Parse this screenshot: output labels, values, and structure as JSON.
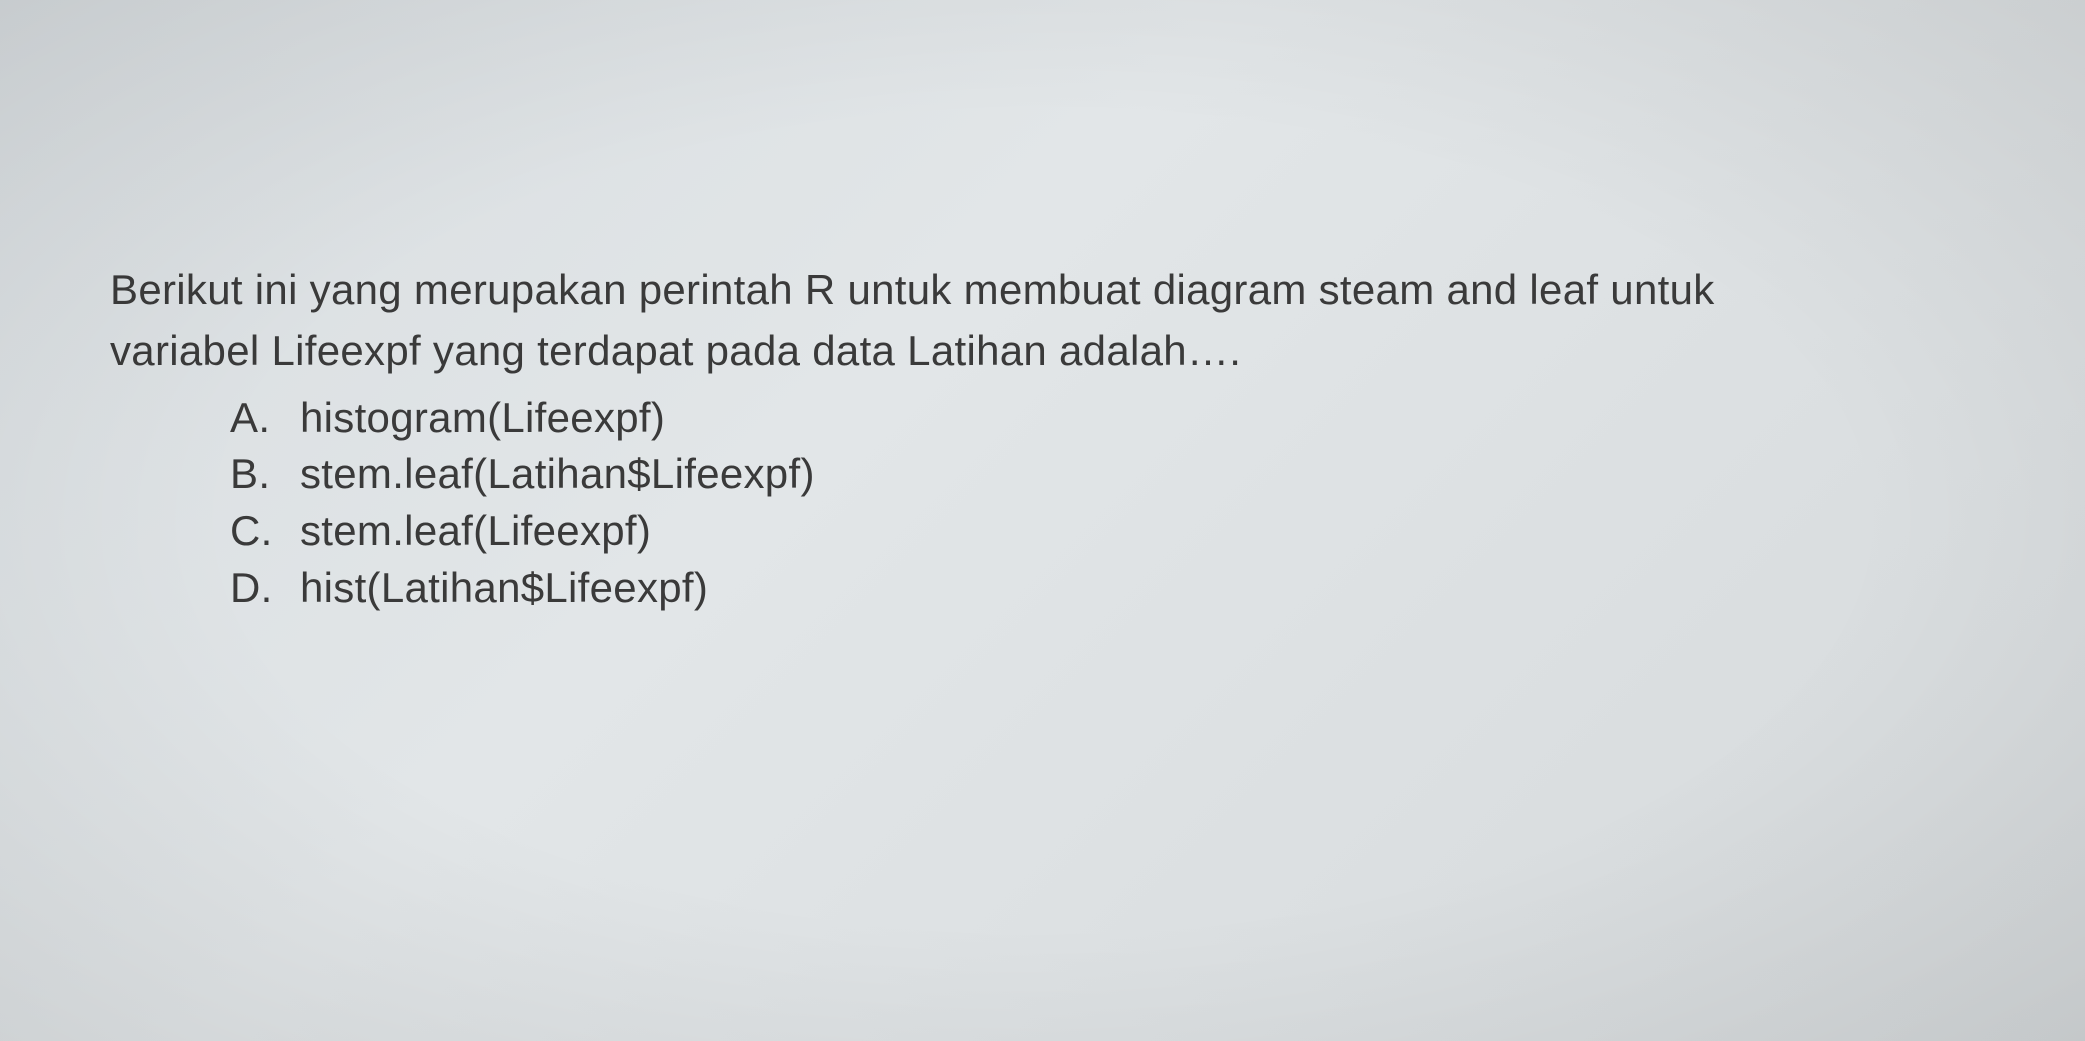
{
  "question": {
    "line1": "Berikut ini yang merupakan perintah R untuk membuat diagram steam and leaf untuk",
    "line2": "variabel Lifeexpf yang terdapat pada data Latihan adalah…."
  },
  "options": [
    {
      "letter": "A.",
      "text": "histogram(Lifeexpf)"
    },
    {
      "letter": "B.",
      "text": "stem.leaf(Latihan$Lifeexpf)"
    },
    {
      "letter": "C.",
      "text": "stem.leaf(Lifeexpf)"
    },
    {
      "letter": "D.",
      "text": "hist(Latihan$Lifeexpf)"
    }
  ],
  "style": {
    "background_gradient_start": "#d8dde0",
    "background_gradient_mid": "#e2e6e8",
    "background_gradient_end": "#d5d9db",
    "text_color": "#3a3a3a",
    "question_fontsize": 42,
    "option_fontsize": 42,
    "font_family": "Arial"
  }
}
